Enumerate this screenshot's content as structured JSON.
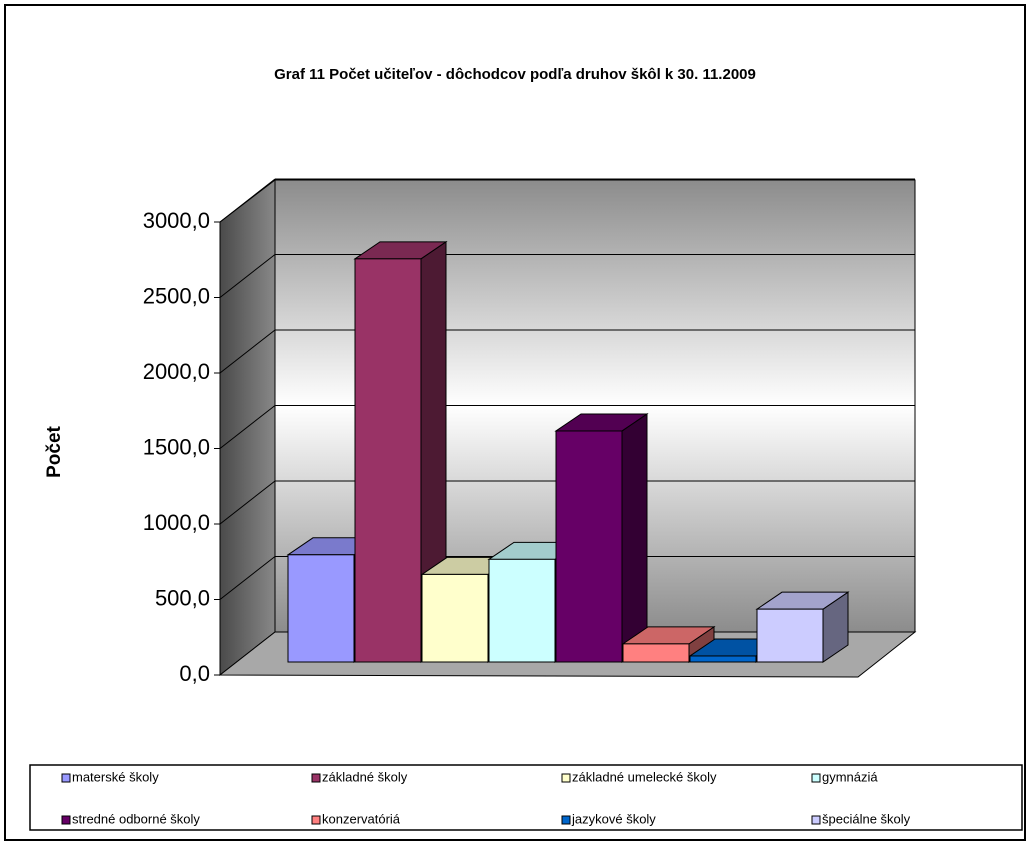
{
  "chart_data": {
    "type": "bar3d",
    "title": "Graf 11 Počet učiteľov - dôchodcov podľa druhov škôl k 30. 11.2009",
    "y_label": "Počet",
    "categories": [
      "materské školy",
      "základné školy",
      "základné umelecké školy",
      "gymnáziá",
      "stredné odborné školy",
      "konzervatóriá",
      "jazykové školy",
      "špeciálne školy"
    ],
    "values": [
      710,
      2670,
      580,
      680,
      1530,
      120,
      40,
      350
    ],
    "colors": [
      "#9999ff",
      "#993366",
      "#ffffcc",
      "#ccffff",
      "#660066",
      "#ff8080",
      "#0066cc",
      "#ccccff"
    ],
    "ylim": [
      0,
      3000
    ],
    "yticks": [
      {
        "value": 0,
        "label": "0,0"
      },
      {
        "value": 500,
        "label": "500,0"
      },
      {
        "value": 1000,
        "label": "1000,0"
      },
      {
        "value": 1500,
        "label": "1500,0"
      },
      {
        "value": 2000,
        "label": "2000,0"
      },
      {
        "value": 2500,
        "label": "2500,0"
      },
      {
        "value": 3000,
        "label": "3000,0"
      }
    ],
    "grid": true,
    "legend": "bottom"
  }
}
